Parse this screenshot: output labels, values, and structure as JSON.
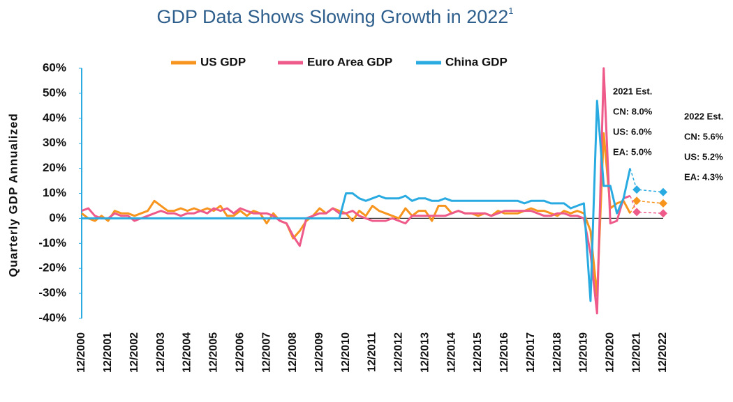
{
  "chart_data": {
    "type": "line",
    "title": "GDP Data Shows Slowing Growth in 2022",
    "title_note": "1",
    "y_label": "Quarterly GDP Annualized",
    "legend": "top",
    "categories": [
      "12/2000",
      null,
      null,
      null,
      "12/2001",
      null,
      null,
      null,
      "12/2002",
      null,
      null,
      null,
      "12/2003",
      null,
      null,
      null,
      "12/2004",
      null,
      null,
      null,
      "12/2005",
      null,
      null,
      null,
      "12/2006",
      null,
      null,
      null,
      "12/2007",
      null,
      null,
      null,
      "12/2008",
      null,
      null,
      null,
      "12/2009",
      null,
      null,
      null,
      "12/2010",
      null,
      null,
      null,
      "12/2011",
      null,
      null,
      null,
      "12/2012",
      null,
      null,
      null,
      "12/2013",
      null,
      null,
      null,
      "12/2014",
      null,
      null,
      null,
      "12/2015",
      null,
      null,
      null,
      "12/2016",
      null,
      null,
      null,
      "12/2017",
      null,
      null,
      null,
      "12/2018",
      null,
      null,
      null,
      "12/2019",
      null,
      null,
      null,
      "12/2020",
      null,
      null,
      null,
      "12/2021",
      null,
      null,
      null,
      "12/2022"
    ],
    "series": [
      {
        "name": "US GDP",
        "color": "#f7941d",
        "values": [
          2,
          0,
          -1,
          1,
          -1,
          3,
          2,
          2,
          1,
          2,
          3,
          7,
          5,
          3,
          3,
          4,
          3,
          4,
          3,
          4,
          3,
          5,
          1,
          1,
          3,
          1,
          3,
          2,
          -2,
          2,
          -1,
          -2,
          -8,
          -5,
          -1,
          1,
          4,
          2,
          4,
          3,
          2,
          -1,
          3,
          1,
          5,
          3,
          2,
          1,
          0,
          4,
          1,
          3,
          3,
          -1,
          5,
          5,
          2,
          3,
          2,
          2,
          1,
          2,
          1,
          3,
          2,
          2,
          2,
          3,
          4,
          3,
          3,
          2,
          1,
          3,
          2,
          3,
          2,
          -5,
          -31,
          34,
          4,
          6,
          7,
          2,
          null,
          null,
          null,
          null,
          null
        ],
        "estimates": [
          null,
          null,
          null,
          null,
          null,
          null,
          null,
          null,
          null,
          null,
          null,
          null,
          null,
          null,
          null,
          null,
          null,
          null,
          null,
          null,
          null,
          null,
          null,
          null,
          null,
          null,
          null,
          null,
          null,
          null,
          null,
          null,
          null,
          null,
          null,
          null,
          null,
          null,
          null,
          null,
          null,
          null,
          null,
          null,
          null,
          null,
          null,
          null,
          null,
          null,
          null,
          null,
          null,
          null,
          null,
          null,
          null,
          null,
          null,
          null,
          null,
          null,
          null,
          null,
          null,
          null,
          null,
          null,
          null,
          null,
          null,
          null,
          null,
          null,
          null,
          null,
          null,
          null,
          null,
          null,
          null,
          null,
          null,
          null,
          7,
          null,
          null,
          null,
          6
        ]
      },
      {
        "name": "Euro Area GDP",
        "color": "#ee5a8a",
        "values": [
          3,
          4,
          1,
          0,
          0,
          2,
          1,
          1,
          -1,
          0,
          1,
          2,
          3,
          2,
          2,
          1,
          2,
          2,
          3,
          2,
          4,
          3,
          4,
          2,
          4,
          3,
          2,
          2,
          2,
          1,
          -1,
          -2,
          -7,
          -11,
          0,
          1,
          2,
          2,
          4,
          2,
          2,
          3,
          1,
          0,
          -1,
          -1,
          -1,
          0,
          -1,
          -2,
          1,
          1,
          1,
          1,
          1,
          1,
          2,
          3,
          2,
          2,
          2,
          2,
          1,
          2,
          3,
          3,
          3,
          3,
          3,
          2,
          1,
          1,
          2,
          2,
          1,
          1,
          0,
          -14,
          -38,
          60,
          -2,
          -1,
          8,
          9,
          null,
          null,
          null,
          null,
          null
        ],
        "estimates": [
          null,
          null,
          null,
          null,
          null,
          null,
          null,
          null,
          null,
          null,
          null,
          null,
          null,
          null,
          null,
          null,
          null,
          null,
          null,
          null,
          null,
          null,
          null,
          null,
          null,
          null,
          null,
          null,
          null,
          null,
          null,
          null,
          null,
          null,
          null,
          null,
          null,
          null,
          null,
          null,
          null,
          null,
          null,
          null,
          null,
          null,
          null,
          null,
          null,
          null,
          null,
          null,
          null,
          null,
          null,
          null,
          null,
          null,
          null,
          null,
          null,
          null,
          null,
          null,
          null,
          null,
          null,
          null,
          null,
          null,
          null,
          null,
          null,
          null,
          null,
          null,
          null,
          null,
          null,
          null,
          null,
          null,
          null,
          null,
          2.5,
          null,
          null,
          null,
          2
        ]
      },
      {
        "name": "China GDP",
        "color": "#29abe2",
        "values": [
          0,
          0,
          0,
          0,
          0,
          0,
          0,
          0,
          0,
          0,
          0,
          0,
          0,
          0,
          0,
          0,
          0,
          0,
          0,
          0,
          0,
          0,
          0,
          0,
          0,
          0,
          0,
          0,
          0,
          0,
          0,
          0,
          0,
          0,
          0,
          0,
          0,
          0,
          0,
          0,
          10,
          10,
          8,
          7,
          8,
          9,
          8,
          8,
          8,
          9,
          7,
          8,
          8,
          7,
          7,
          8,
          7,
          7,
          7,
          7,
          7,
          7,
          7,
          7,
          7,
          7,
          7,
          6,
          7,
          7,
          7,
          6,
          6,
          6,
          4,
          5,
          6,
          -33,
          47,
          13,
          13,
          2,
          8,
          20,
          null,
          null,
          null,
          null,
          null
        ],
        "estimates": [
          null,
          null,
          null,
          null,
          null,
          null,
          null,
          null,
          null,
          null,
          null,
          null,
          null,
          null,
          null,
          null,
          null,
          null,
          null,
          null,
          null,
          null,
          null,
          null,
          null,
          null,
          null,
          null,
          null,
          null,
          null,
          null,
          null,
          null,
          null,
          null,
          null,
          null,
          null,
          null,
          null,
          null,
          null,
          null,
          null,
          null,
          null,
          null,
          null,
          null,
          null,
          null,
          null,
          null,
          null,
          null,
          null,
          null,
          null,
          null,
          null,
          null,
          null,
          null,
          null,
          null,
          null,
          null,
          null,
          null,
          null,
          null,
          null,
          null,
          null,
          null,
          null,
          null,
          null,
          null,
          null,
          null,
          null,
          null,
          11.5,
          null,
          null,
          null,
          10.5
        ]
      }
    ],
    "ylim": [
      -40,
      60
    ],
    "yticks": [
      {
        "value": -40,
        "label": "-40%"
      },
      {
        "value": -30,
        "label": "-30%"
      },
      {
        "value": -20,
        "label": "-20%"
      },
      {
        "value": -10,
        "label": "-10%"
      },
      {
        "value": 0,
        "label": "0%"
      },
      {
        "value": 10,
        "label": "10%"
      },
      {
        "value": 20,
        "label": "20%"
      },
      {
        "value": 30,
        "label": "30%"
      },
      {
        "value": 40,
        "label": "40%"
      },
      {
        "value": 50,
        "label": "50%"
      },
      {
        "value": 60,
        "label": "60%"
      }
    ],
    "annotations": [
      {
        "lines": [
          "2021 Est.",
          "CN: 8.0%",
          "US: 6.0%",
          "EA: 5.0%"
        ]
      },
      {
        "lines": [
          "2022 Est.",
          "CN: 5.6%",
          "US: 5.2%",
          "EA: 4.3%"
        ]
      }
    ]
  }
}
